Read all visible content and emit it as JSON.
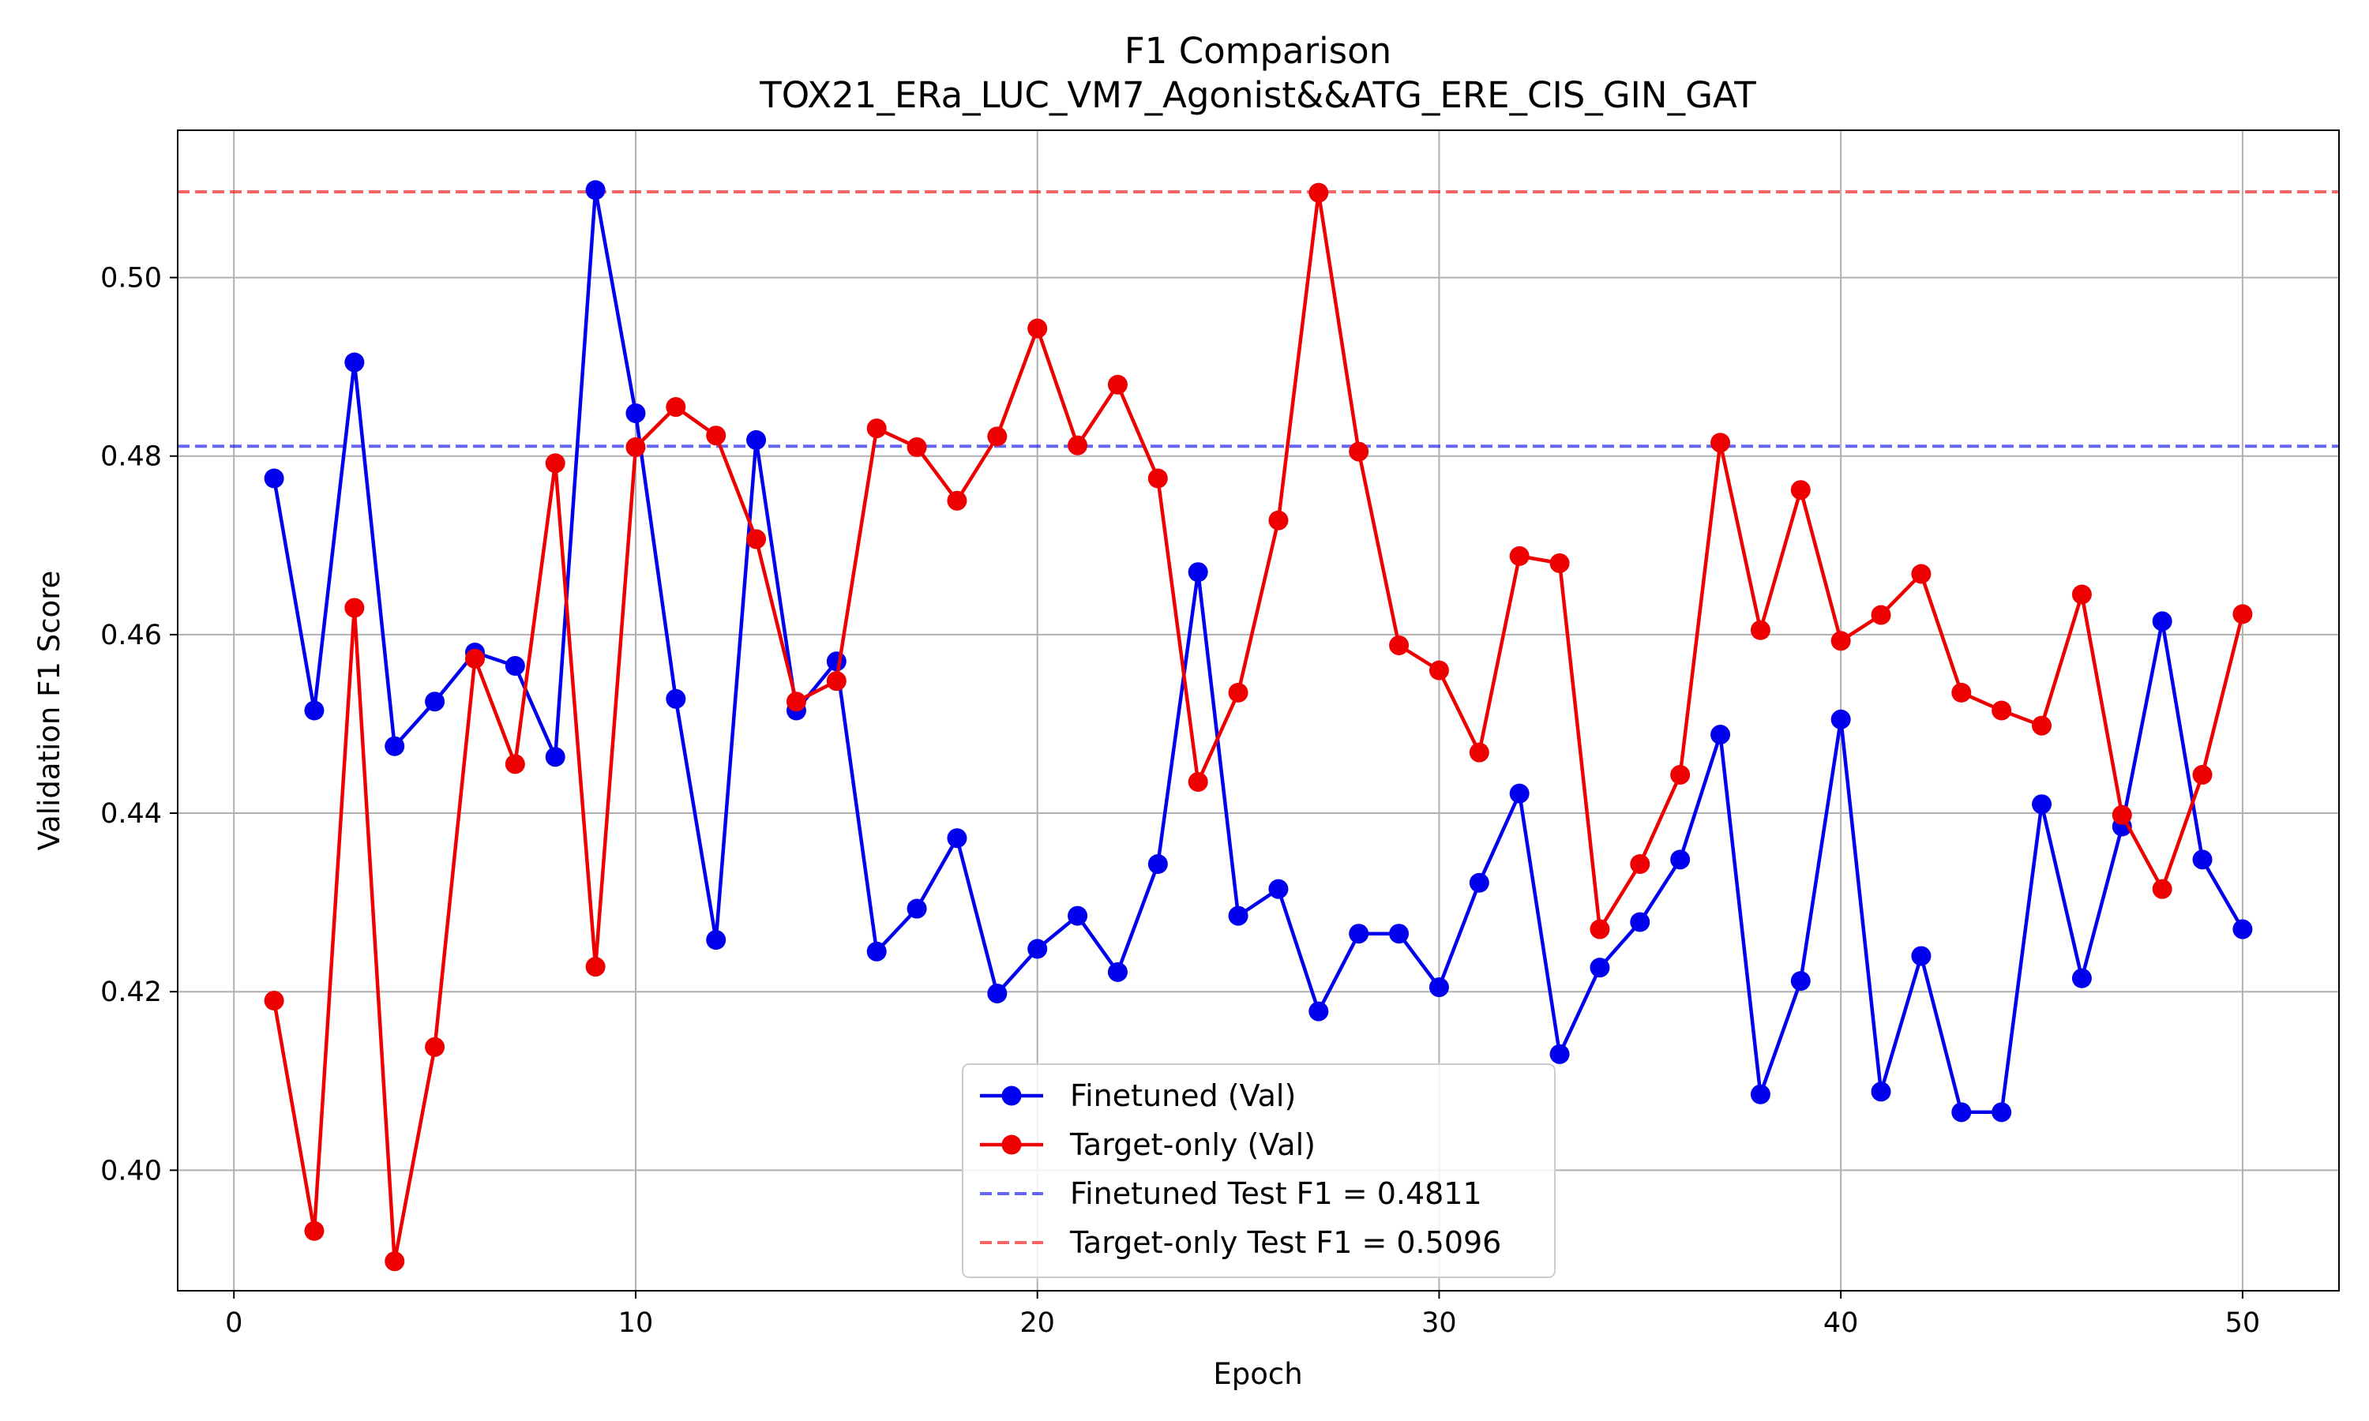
{
  "chart_data": {
    "type": "line",
    "title": "F1 Comparison",
    "subtitle": "TOX21_ERa_LUC_VM7_Agonist&&ATG_ERE_CIS_GIN_GAT",
    "xlabel": "Epoch",
    "ylabel": "Validation F1 Score",
    "xlim": [
      -1.4,
      52.4
    ],
    "ylim": [
      0.3865,
      0.5165
    ],
    "xticks": [
      0,
      10,
      20,
      30,
      40,
      50
    ],
    "yticks": [
      0.4,
      0.42,
      0.44,
      0.46,
      0.48,
      0.5
    ],
    "ytick_labels": [
      "0.40",
      "0.42",
      "0.44",
      "0.46",
      "0.48",
      "0.50"
    ],
    "grid": true,
    "legend_position": "bottom-center",
    "x": [
      1,
      2,
      3,
      4,
      5,
      6,
      7,
      8,
      9,
      10,
      11,
      12,
      13,
      14,
      15,
      16,
      17,
      18,
      19,
      20,
      21,
      22,
      23,
      24,
      25,
      26,
      27,
      28,
      29,
      30,
      31,
      32,
      33,
      34,
      35,
      36,
      37,
      38,
      39,
      40,
      41,
      42,
      43,
      44,
      45,
      46,
      47,
      48,
      49,
      50
    ],
    "series": [
      {
        "name": "Finetuned (Val)",
        "color": "#0000ee",
        "values": [
          0.4775,
          0.4515,
          0.4905,
          0.4475,
          0.4525,
          0.458,
          0.4565,
          0.4463,
          0.5098,
          0.4848,
          0.4528,
          0.4258,
          0.4818,
          0.4515,
          0.457,
          0.4245,
          0.4293,
          0.4372,
          0.4198,
          0.4248,
          0.4285,
          0.4222,
          0.4343,
          0.467,
          0.4285,
          0.4315,
          0.4178,
          0.4265,
          0.4265,
          0.4205,
          0.4322,
          0.4422,
          0.413,
          0.4227,
          0.4278,
          0.4348,
          0.4488,
          0.4085,
          0.4212,
          0.4505,
          0.4088,
          0.424,
          0.4065,
          0.4065,
          0.441,
          0.4215,
          0.4385,
          0.4615,
          0.4348,
          0.427
        ]
      },
      {
        "name": "Target-only (Val)",
        "color": "#ee0000",
        "values": [
          0.419,
          0.3932,
          0.463,
          0.3898,
          0.4138,
          0.4573,
          0.4455,
          0.4792,
          0.4228,
          0.481,
          0.4855,
          0.4823,
          0.4707,
          0.4525,
          0.4548,
          0.4831,
          0.481,
          0.475,
          0.4822,
          0.4943,
          0.4812,
          0.488,
          0.4775,
          0.4435,
          0.4535,
          0.4728,
          0.5095,
          0.4805,
          0.4588,
          0.456,
          0.4468,
          0.4688,
          0.468,
          0.427,
          0.4343,
          0.4443,
          0.4815,
          0.4605,
          0.4762,
          0.4593,
          0.4622,
          0.4668,
          0.4535,
          0.4515,
          0.4498,
          0.4645,
          0.4398,
          0.4315,
          0.4443,
          0.4623
        ]
      }
    ],
    "reference_lines": [
      {
        "name": "Finetuned Test F1 = 0.4811",
        "value": 0.4811,
        "color": "#0000ee"
      },
      {
        "name": "Target-only Test F1 = 0.5096",
        "value": 0.5096,
        "color": "#ee0000"
      }
    ]
  }
}
